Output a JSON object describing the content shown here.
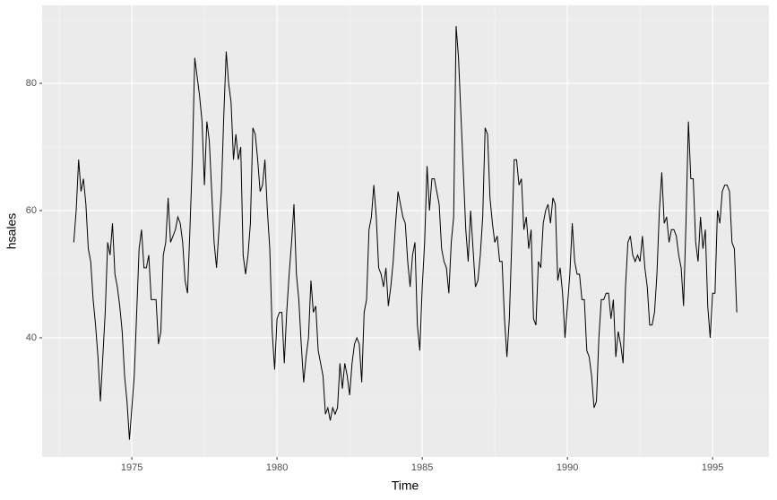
{
  "chart_data": {
    "type": "line",
    "x_label": "Time",
    "y_label": "hsales",
    "xlim": [
      1971.91,
      1996.94
    ],
    "ylim": [
      21.27,
      92.25
    ],
    "xticks": [
      1975,
      1980,
      1985,
      1990,
      1995
    ],
    "yticks": [
      40,
      60,
      80
    ],
    "minor_xticks": [
      1972.5,
      1977.5,
      1982.5,
      1987.5,
      1992.5
    ],
    "minor_yticks": [
      30,
      50,
      70,
      90
    ],
    "grid": true,
    "x": [
      1973.0,
      1973.083,
      1973.167,
      1973.25,
      1973.333,
      1973.417,
      1973.5,
      1973.583,
      1973.667,
      1973.75,
      1973.833,
      1973.917,
      1974.0,
      1974.083,
      1974.167,
      1974.25,
      1974.333,
      1974.417,
      1974.5,
      1974.583,
      1974.667,
      1974.75,
      1974.833,
      1974.917,
      1975.0,
      1975.083,
      1975.167,
      1975.25,
      1975.333,
      1975.417,
      1975.5,
      1975.583,
      1975.667,
      1975.75,
      1975.833,
      1975.917,
      1976.0,
      1976.083,
      1976.167,
      1976.25,
      1976.333,
      1976.417,
      1976.5,
      1976.583,
      1976.667,
      1976.75,
      1976.833,
      1976.917,
      1977.0,
      1977.083,
      1977.167,
      1977.25,
      1977.333,
      1977.417,
      1977.5,
      1977.583,
      1977.667,
      1977.75,
      1977.833,
      1977.917,
      1978.0,
      1978.083,
      1978.167,
      1978.25,
      1978.333,
      1978.417,
      1978.5,
      1978.583,
      1978.667,
      1978.75,
      1978.833,
      1978.917,
      1979.0,
      1979.083,
      1979.167,
      1979.25,
      1979.333,
      1979.417,
      1979.5,
      1979.583,
      1979.667,
      1979.75,
      1979.833,
      1979.917,
      1980.0,
      1980.083,
      1980.167,
      1980.25,
      1980.333,
      1980.417,
      1980.5,
      1980.583,
      1980.667,
      1980.75,
      1980.833,
      1980.917,
      1981.0,
      1981.083,
      1981.167,
      1981.25,
      1981.333,
      1981.417,
      1981.5,
      1981.583,
      1981.667,
      1981.75,
      1981.833,
      1981.917,
      1982.0,
      1982.083,
      1982.167,
      1982.25,
      1982.333,
      1982.417,
      1982.5,
      1982.583,
      1982.667,
      1982.75,
      1982.833,
      1982.917,
      1983.0,
      1983.083,
      1983.167,
      1983.25,
      1983.333,
      1983.417,
      1983.5,
      1983.583,
      1983.667,
      1983.75,
      1983.833,
      1983.917,
      1984.0,
      1984.083,
      1984.167,
      1984.25,
      1984.333,
      1984.417,
      1984.5,
      1984.583,
      1984.667,
      1984.75,
      1984.833,
      1984.917,
      1985.0,
      1985.083,
      1985.167,
      1985.25,
      1985.333,
      1985.417,
      1985.5,
      1985.583,
      1985.667,
      1985.75,
      1985.833,
      1985.917,
      1986.0,
      1986.083,
      1986.167,
      1986.25,
      1986.333,
      1986.417,
      1986.5,
      1986.583,
      1986.667,
      1986.75,
      1986.833,
      1986.917,
      1987.0,
      1987.083,
      1987.167,
      1987.25,
      1987.333,
      1987.417,
      1987.5,
      1987.583,
      1987.667,
      1987.75,
      1987.833,
      1987.917,
      1988.0,
      1988.083,
      1988.167,
      1988.25,
      1988.333,
      1988.417,
      1988.5,
      1988.583,
      1988.667,
      1988.75,
      1988.833,
      1988.917,
      1989.0,
      1989.083,
      1989.167,
      1989.25,
      1989.333,
      1989.417,
      1989.5,
      1989.583,
      1989.667,
      1989.75,
      1989.833,
      1989.917,
      1990.0,
      1990.083,
      1990.167,
      1990.25,
      1990.333,
      1990.417,
      1990.5,
      1990.583,
      1990.667,
      1990.75,
      1990.833,
      1990.917,
      1991.0,
      1991.083,
      1991.167,
      1991.25,
      1991.333,
      1991.417,
      1991.5,
      1991.583,
      1991.667,
      1991.75,
      1991.833,
      1991.917,
      1992.0,
      1992.083,
      1992.167,
      1992.25,
      1992.333,
      1992.417,
      1992.5,
      1992.583,
      1992.667,
      1992.75,
      1992.833,
      1992.917,
      1993.0,
      1993.083,
      1993.167,
      1993.25,
      1993.333,
      1993.417,
      1993.5,
      1993.583,
      1993.667,
      1993.75,
      1993.833,
      1993.917,
      1994.0,
      1994.083,
      1994.167,
      1994.25,
      1994.333,
      1994.417,
      1994.5,
      1994.583,
      1994.667,
      1994.75,
      1994.833,
      1994.917,
      1995.0,
      1995.083,
      1995.167,
      1995.25,
      1995.333,
      1995.417,
      1995.5,
      1995.583,
      1995.667,
      1995.75,
      1995.833
    ],
    "series": [
      {
        "color": "#000000",
        "values": [
          55,
          60,
          68,
          63,
          65,
          61,
          54,
          52,
          46,
          42,
          37,
          30,
          37,
          44,
          55,
          53,
          58,
          50,
          48,
          45,
          41,
          34,
          30,
          24,
          29,
          34,
          44,
          54,
          57,
          51,
          51,
          53,
          46,
          46,
          46,
          39,
          41,
          53,
          55,
          62,
          55,
          56,
          57,
          59,
          58,
          55,
          49,
          47,
          57,
          68,
          84,
          81,
          78,
          74,
          64,
          74,
          71,
          63,
          55,
          51,
          57,
          63,
          75,
          85,
          80,
          77,
          68,
          72,
          68,
          70,
          53,
          50,
          53,
          58,
          73,
          72,
          68,
          63,
          64,
          68,
          60,
          54,
          41,
          35,
          43,
          44,
          44,
          36,
          44,
          50,
          55,
          61,
          50,
          46,
          39,
          33,
          37,
          40,
          49,
          44,
          45,
          38,
          36,
          34,
          28,
          29,
          27,
          29,
          28,
          29,
          36,
          32,
          36,
          34,
          31,
          36,
          39,
          40,
          39,
          33,
          44,
          46,
          57,
          59,
          64,
          59,
          51,
          50,
          48,
          51,
          45,
          48,
          52,
          58,
          63,
          61,
          59,
          58,
          52,
          48,
          53,
          55,
          42,
          38,
          48,
          55,
          67,
          60,
          65,
          65,
          63,
          61,
          54,
          52,
          51,
          47,
          55,
          59,
          89,
          84,
          75,
          66,
          57,
          52,
          60,
          54,
          48,
          49,
          53,
          59,
          73,
          72,
          62,
          58,
          55,
          56,
          52,
          52,
          43,
          37,
          43,
          55,
          68,
          68,
          64,
          65,
          57,
          59,
          54,
          57,
          43,
          42,
          52,
          51,
          58,
          60,
          61,
          58,
          62,
          61,
          49,
          51,
          47,
          40,
          45,
          50,
          58,
          52,
          50,
          50,
          46,
          46,
          38,
          37,
          34,
          29,
          30,
          40,
          46,
          46,
          47,
          47,
          43,
          46,
          37,
          41,
          39,
          36,
          48,
          55,
          56,
          53,
          52,
          53,
          52,
          56,
          51,
          48,
          42,
          42,
          44,
          50,
          60,
          66,
          58,
          59,
          55,
          57,
          57,
          56,
          53,
          51,
          45,
          58,
          74,
          65,
          65,
          55,
          52,
          59,
          54,
          57,
          45,
          40,
          47,
          47,
          60,
          58,
          63,
          64,
          64,
          63,
          55,
          54,
          44
        ]
      }
    ]
  }
}
